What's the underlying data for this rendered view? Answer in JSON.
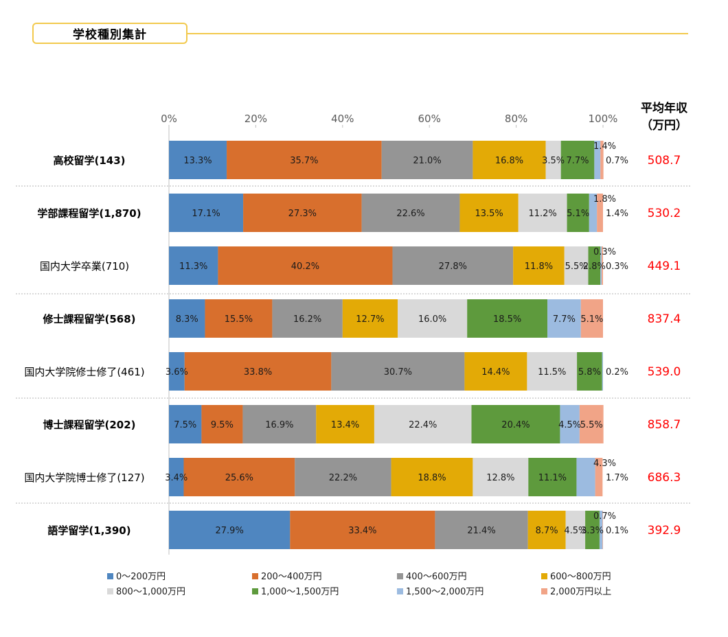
{
  "section_title": "学校種別集計",
  "avg_header": [
    "平均年収",
    "（万円）"
  ],
  "chart_data": {
    "type": "bar",
    "orientation": "horizontal-stacked-100",
    "x_ticks": [
      "0%",
      "20%",
      "40%",
      "60%",
      "80%",
      "100%"
    ],
    "xlim": [
      0,
      100
    ],
    "legend_position": "bottom",
    "series": [
      {
        "name": "0〜200万円",
        "color": "#4f86c0"
      },
      {
        "name": "200〜400万円",
        "color": "#d86f2d"
      },
      {
        "name": "400〜600万円",
        "color": "#959595"
      },
      {
        "name": "600〜800万円",
        "color": "#e3aa06"
      },
      {
        "name": "800〜1,000万円",
        "color": "#d9d9d9"
      },
      {
        "name": "1,000〜1,500万円",
        "color": "#5e9a3d"
      },
      {
        "name": "1,500〜2,000万円",
        "color": "#9cbbe0"
      },
      {
        "name": "2,000万円以上",
        "color": "#f1a487"
      }
    ],
    "categories": [
      {
        "label": "高校留学(143)",
        "bold": true,
        "avg": "508.7",
        "values": [
          13.3,
          35.7,
          21.0,
          16.8,
          3.5,
          7.7,
          1.4,
          0.7
        ],
        "labels": [
          "13.3%",
          "35.7%",
          "21.0%",
          "16.8%",
          "3.5%",
          "7.7%",
          "1.4%",
          "0.7%"
        ]
      },
      {
        "label": "学部課程留学(1,870)",
        "bold": true,
        "avg": "530.2",
        "values": [
          17.1,
          27.3,
          22.6,
          13.5,
          11.2,
          5.1,
          1.8,
          1.4
        ],
        "labels": [
          "17.1%",
          "27.3%",
          "22.6%",
          "13.5%",
          "11.2%",
          "5.1%",
          "1.8%",
          "1.4%"
        ]
      },
      {
        "label": "国内大学卒業(710)",
        "bold": false,
        "avg": "449.1",
        "values": [
          11.3,
          40.2,
          27.8,
          11.8,
          5.5,
          2.8,
          0.3,
          0.3
        ],
        "labels": [
          "11.3%",
          "40.2%",
          "27.8%",
          "11.8%",
          "5.5%",
          "2.8%",
          "0.3%",
          "0.3%"
        ]
      },
      {
        "label": "修士課程留学(568)",
        "bold": true,
        "avg": "837.4",
        "values": [
          8.3,
          15.5,
          16.2,
          12.7,
          16.0,
          18.5,
          7.7,
          5.1
        ],
        "labels": [
          "8.3%",
          "15.5%",
          "16.2%",
          "12.7%",
          "16.0%",
          "18.5%",
          "7.7%",
          "5.1%"
        ]
      },
      {
        "label": "国内大学院修士修了(461)",
        "bold": false,
        "avg": "539.0",
        "values": [
          3.6,
          33.8,
          30.7,
          14.4,
          11.5,
          5.8,
          0.2,
          0.0
        ],
        "labels": [
          "3.6%",
          "33.8%",
          "30.7%",
          "14.4%",
          "11.5%",
          "5.8%",
          "0.2%",
          ""
        ]
      },
      {
        "label": "博士課程留学(202)",
        "bold": true,
        "avg": "858.7",
        "values": [
          7.5,
          9.5,
          16.9,
          13.4,
          22.4,
          20.4,
          4.5,
          5.5
        ],
        "labels": [
          "7.5%",
          "9.5%",
          "16.9%",
          "13.4%",
          "22.4%",
          "20.4%",
          "4.5%",
          "5.5%"
        ]
      },
      {
        "label": "国内大学院博士修了(127)",
        "bold": false,
        "avg": "686.3",
        "values": [
          3.4,
          25.6,
          22.2,
          18.8,
          12.8,
          11.1,
          4.3,
          1.7
        ],
        "labels": [
          "3.4%",
          "25.6%",
          "22.2%",
          "18.8%",
          "12.8%",
          "11.1%",
          "4.3%",
          "1.7%"
        ]
      },
      {
        "label": "語学留学(1,390)",
        "bold": true,
        "avg": "392.9",
        "values": [
          27.9,
          33.4,
          21.4,
          8.7,
          4.5,
          3.3,
          0.7,
          0.1
        ],
        "labels": [
          "27.9%",
          "33.4%",
          "21.4%",
          "8.7%",
          "4.5%",
          "3.3%",
          "0.7%",
          "0.1%"
        ]
      }
    ]
  }
}
